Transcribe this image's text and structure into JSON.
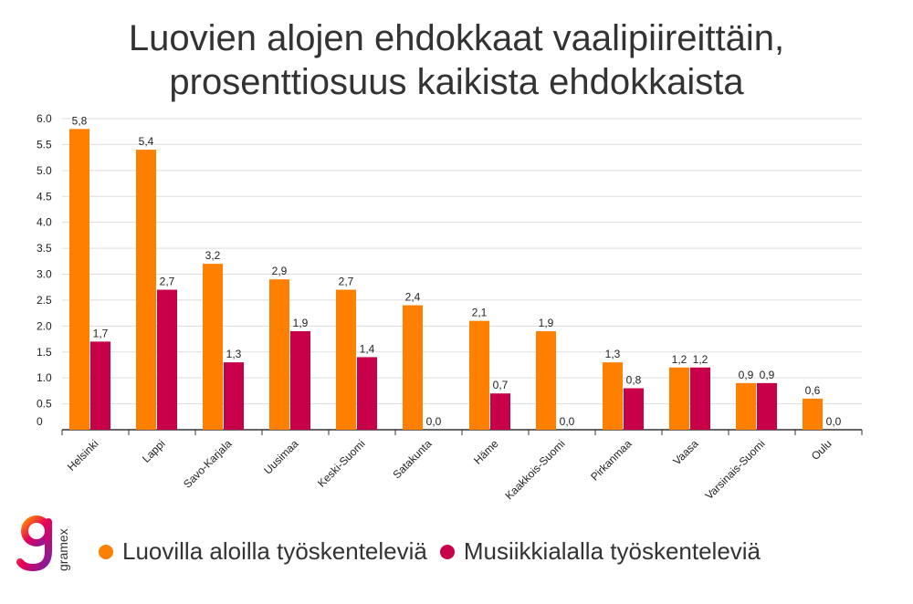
{
  "title_lines": [
    "Luovien alojen ehdokkaat vaalipiireittäin,",
    "prosenttiosuus kaikista ehdokkaista"
  ],
  "logo": {
    "text": "gramex",
    "icon": "gramex-logo-icon"
  },
  "colors": {
    "series1": "#ff7f00",
    "series2": "#c8004a",
    "grid": "#dddddd",
    "axis": "#333333",
    "text": "#222222"
  },
  "chart_data": {
    "type": "bar",
    "title": "Luovien alojen ehdokkaat vaalipiireittäin, prosenttiosuus kaikista ehdokkaista",
    "xlabel": "",
    "ylabel": "",
    "ylim": [
      0,
      6.0
    ],
    "y_ticks": [
      "0",
      "0.5",
      "1.0",
      "1.5",
      "2.0",
      "2.5",
      "3.0",
      "3.5",
      "4.0",
      "4.5",
      "5.0",
      "5.5",
      "6.0"
    ],
    "grid": true,
    "legend_position": "bottom",
    "categories": [
      "Helsinki",
      "Lappi",
      "Savo-Karjala",
      "Uusimaa",
      "Keski-Suomi",
      "Satakunta",
      "Häme",
      "Kaakkois-Suomi",
      "Pirkanmaa",
      "Vaasa",
      "Varsinais-Suomi",
      "Oulu"
    ],
    "series": [
      {
        "name": "Luovilla aloilla työskenteleviä",
        "values": [
          5.8,
          5.4,
          3.2,
          2.9,
          2.7,
          2.4,
          2.1,
          1.9,
          1.3,
          1.2,
          0.9,
          0.6
        ],
        "labels": [
          "5,8",
          "5,4",
          "3,2",
          "2,9",
          "2,7",
          "2,4",
          "2,1",
          "1,9",
          "1,3",
          "1,2",
          "0,9",
          "0,6"
        ]
      },
      {
        "name": "Musiikkialalla työskenteleviä",
        "values": [
          1.7,
          2.7,
          1.3,
          1.9,
          1.4,
          0.0,
          0.7,
          0.0,
          0.8,
          1.2,
          0.9,
          0.0
        ],
        "labels": [
          "1,7",
          "2,7",
          "1,3",
          "1,9",
          "1,4",
          "0,0",
          "0,7",
          "0,0",
          "0,8",
          "1,2",
          "0,9",
          "0,0"
        ]
      }
    ]
  }
}
